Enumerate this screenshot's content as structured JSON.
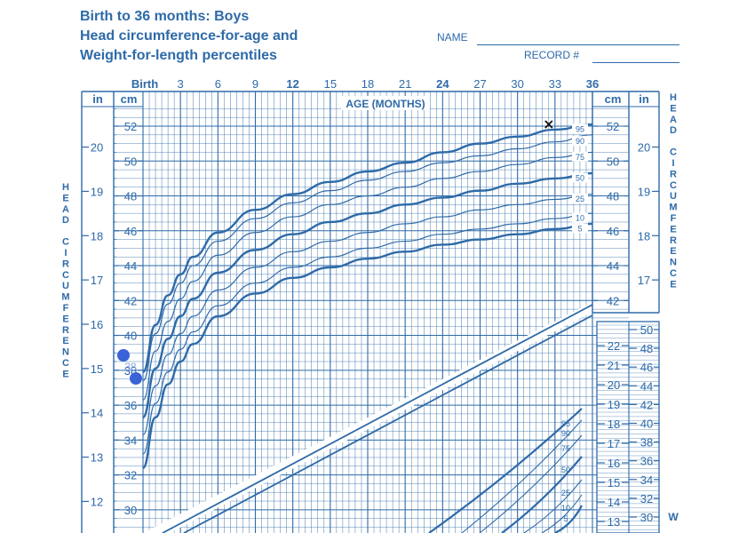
{
  "header": {
    "line1": "Birth to 36 months: Boys",
    "line2": "Head circumference-for-age and",
    "line3": "Weight-for-length percentiles",
    "name_label": "NAME",
    "record_label": "RECORD #"
  },
  "side_labels": {
    "left_title": "HEAD CIRCUMFERENCE",
    "right_title": "HEAD CIRCUMFERENCE",
    "right_weight": "W"
  },
  "chart_data": [
    {
      "type": "line",
      "title": "Head circumference-for-age",
      "x_axis_label": "AGE (MONTHS)",
      "x_ticks": [
        "Birth",
        "3",
        "6",
        "9",
        "12",
        "15",
        "18",
        "21",
        "24",
        "27",
        "30",
        "33",
        "36"
      ],
      "bold_x_ticks": [
        "Birth",
        "12",
        "24",
        "36"
      ],
      "xlim": [
        0,
        36
      ],
      "y_unit_cm": "cm",
      "y_unit_in": "in",
      "y_ticks_cm": [
        "52",
        "50",
        "48",
        "46",
        "44",
        "42",
        "40",
        "38",
        "36",
        "34",
        "32",
        "30"
      ],
      "y_ticks_in": [
        "20",
        "19",
        "18",
        "17",
        "16",
        "15",
        "14",
        "13",
        "12"
      ],
      "ylim_cm": [
        29,
        53
      ],
      "series": [
        {
          "name": "95",
          "x": [
            0,
            1,
            2,
            3,
            4,
            6,
            9,
            12,
            15,
            18,
            21,
            24,
            27,
            30,
            33,
            36
          ],
          "values": [
            37.9,
            40.6,
            42.3,
            43.5,
            44.5,
            45.9,
            47.2,
            48.1,
            48.8,
            49.4,
            49.9,
            50.5,
            51.0,
            51.4,
            51.8,
            52.1
          ]
        },
        {
          "name": "90",
          "x": [
            0,
            1,
            2,
            3,
            4,
            6,
            9,
            12,
            15,
            18,
            21,
            24,
            27,
            30,
            33,
            36
          ],
          "values": [
            37.4,
            40.1,
            41.8,
            43.0,
            44.0,
            45.4,
            46.7,
            47.6,
            48.3,
            48.9,
            49.4,
            49.9,
            50.3,
            50.7,
            51.1,
            51.5
          ]
        },
        {
          "name": "75",
          "x": [
            0,
            1,
            2,
            3,
            4,
            6,
            9,
            12,
            15,
            18,
            21,
            24,
            27,
            30,
            33,
            36
          ],
          "values": [
            36.3,
            39.1,
            40.8,
            42.1,
            43.1,
            44.6,
            45.9,
            46.8,
            47.5,
            48.0,
            48.5,
            49.0,
            49.4,
            49.8,
            50.2,
            50.5
          ]
        },
        {
          "name": "50",
          "x": [
            0,
            1,
            2,
            3,
            4,
            6,
            9,
            12,
            15,
            18,
            21,
            24,
            27,
            30,
            33,
            36
          ],
          "values": [
            35.3,
            38.1,
            39.8,
            41.1,
            42.1,
            43.6,
            44.9,
            45.8,
            46.5,
            47.0,
            47.5,
            47.9,
            48.3,
            48.7,
            49.0,
            49.3
          ]
        },
        {
          "name": "25",
          "x": [
            0,
            1,
            2,
            3,
            4,
            6,
            9,
            12,
            15,
            18,
            21,
            24,
            27,
            30,
            33,
            36
          ],
          "values": [
            34.3,
            37.1,
            38.9,
            40.1,
            41.1,
            42.6,
            43.9,
            44.8,
            45.4,
            45.9,
            46.4,
            46.8,
            47.2,
            47.5,
            47.8,
            48.1
          ]
        },
        {
          "name": "10",
          "x": [
            0,
            1,
            2,
            3,
            4,
            6,
            9,
            12,
            15,
            18,
            21,
            24,
            27,
            30,
            33,
            36
          ],
          "values": [
            33.2,
            36.1,
            37.9,
            39.2,
            40.2,
            41.7,
            43.0,
            43.9,
            44.5,
            45.0,
            45.4,
            45.8,
            46.1,
            46.4,
            46.7,
            47.0
          ]
        },
        {
          "name": "5",
          "x": [
            0,
            1,
            2,
            3,
            4,
            6,
            9,
            12,
            15,
            18,
            21,
            24,
            27,
            30,
            33,
            36
          ],
          "values": [
            32.4,
            35.3,
            37.2,
            38.5,
            39.5,
            41.1,
            42.4,
            43.3,
            43.9,
            44.4,
            44.8,
            45.2,
            45.5,
            45.8,
            46.1,
            46.4
          ]
        }
      ],
      "markers": [
        {
          "kind": "cross",
          "x": 32.5,
          "y": 52.1
        }
      ],
      "dots": [
        {
          "label": "",
          "y_cm": 39.3
        },
        {
          "label": "",
          "y_cm": 37.9
        }
      ],
      "dot_label": "38",
      "grid": true
    },
    {
      "type": "line",
      "title": "Weight-for-length",
      "y_ticks_kg": [
        "22",
        "21",
        "20",
        "19",
        "18",
        "17",
        "16",
        "15",
        "14",
        "13"
      ],
      "y_ticks_lb": [
        "50",
        "48",
        "46",
        "44",
        "42",
        "40",
        "38",
        "36",
        "34",
        "32",
        "30"
      ],
      "series": [
        {
          "name": "95"
        },
        {
          "name": "90"
        },
        {
          "name": "75"
        },
        {
          "name": "50"
        },
        {
          "name": "25"
        },
        {
          "name": "10"
        },
        {
          "name": "5"
        }
      ],
      "grid": true
    }
  ]
}
